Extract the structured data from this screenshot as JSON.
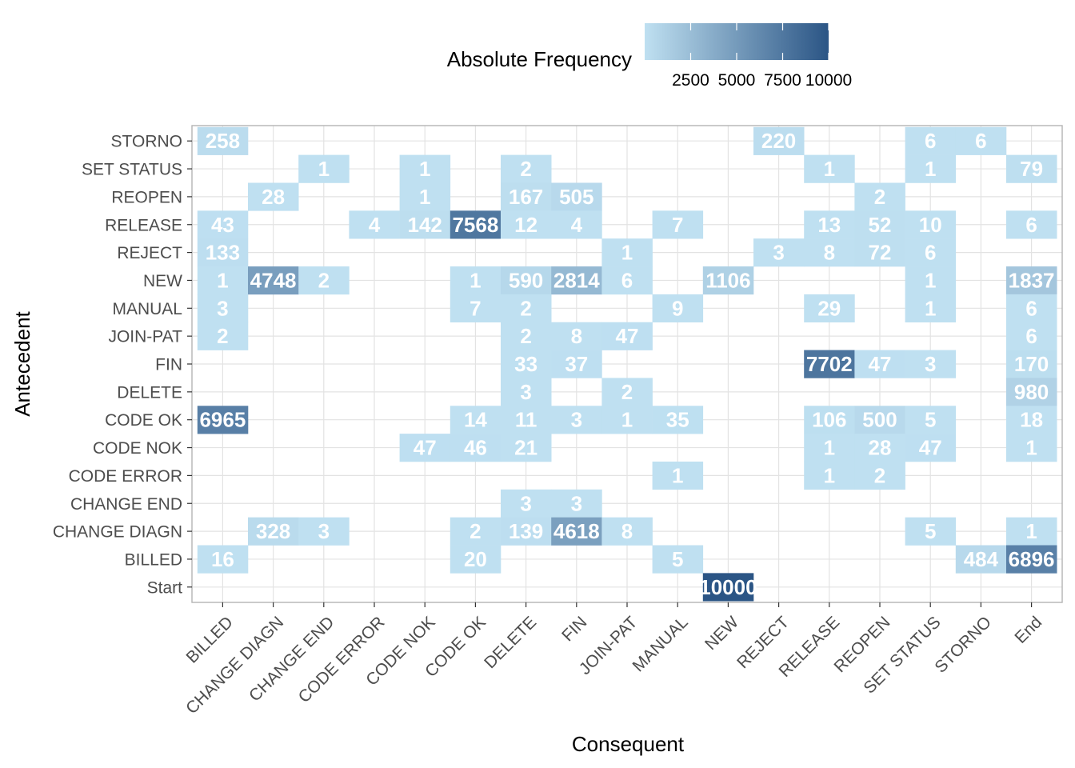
{
  "chart_data": {
    "type": "heatmap",
    "title": "",
    "xlabel": "Consequent",
    "ylabel": "Antecedent",
    "legend": {
      "title": "Absolute Frequency",
      "position": "top",
      "ticks": [
        2500,
        5000,
        7500,
        10000
      ],
      "range": [
        1,
        10000
      ],
      "color_low": "#bfe0f1",
      "color_high": "#2b5585"
    },
    "grid": true,
    "x_categories": [
      "BILLED",
      "CHANGE DIAGN",
      "CHANGE END",
      "CODE ERROR",
      "CODE NOK",
      "CODE OK",
      "DELETE",
      "FIN",
      "JOIN-PAT",
      "MANUAL",
      "NEW",
      "REJECT",
      "RELEASE",
      "REOPEN",
      "SET STATUS",
      "STORNO",
      "End"
    ],
    "y_categories": [
      "Start",
      "BILLED",
      "CHANGE DIAGN",
      "CHANGE END",
      "CODE ERROR",
      "CODE NOK",
      "CODE OK",
      "DELETE",
      "FIN",
      "JOIN-PAT",
      "MANUAL",
      "NEW",
      "REJECT",
      "RELEASE",
      "REOPEN",
      "SET STATUS",
      "STORNO"
    ],
    "cells": [
      {
        "y": "STORNO",
        "x": "BILLED",
        "value": 258
      },
      {
        "y": "STORNO",
        "x": "REJECT",
        "value": 220
      },
      {
        "y": "STORNO",
        "x": "SET STATUS",
        "value": 6
      },
      {
        "y": "STORNO",
        "x": "STORNO",
        "value": 6
      },
      {
        "y": "SET STATUS",
        "x": "CHANGE END",
        "value": 1
      },
      {
        "y": "SET STATUS",
        "x": "CODE NOK",
        "value": 1
      },
      {
        "y": "SET STATUS",
        "x": "DELETE",
        "value": 2
      },
      {
        "y": "SET STATUS",
        "x": "RELEASE",
        "value": 1
      },
      {
        "y": "SET STATUS",
        "x": "SET STATUS",
        "value": 1
      },
      {
        "y": "SET STATUS",
        "x": "End",
        "value": 79
      },
      {
        "y": "REOPEN",
        "x": "CHANGE DIAGN",
        "value": 28
      },
      {
        "y": "REOPEN",
        "x": "CODE NOK",
        "value": 1
      },
      {
        "y": "REOPEN",
        "x": "DELETE",
        "value": 167
      },
      {
        "y": "REOPEN",
        "x": "FIN",
        "value": 505
      },
      {
        "y": "REOPEN",
        "x": "REOPEN",
        "value": 2
      },
      {
        "y": "RELEASE",
        "x": "BILLED",
        "value": 43
      },
      {
        "y": "RELEASE",
        "x": "CODE ERROR",
        "value": 4
      },
      {
        "y": "RELEASE",
        "x": "CODE NOK",
        "value": 142
      },
      {
        "y": "RELEASE",
        "x": "CODE OK",
        "value": 7568
      },
      {
        "y": "RELEASE",
        "x": "DELETE",
        "value": 12
      },
      {
        "y": "RELEASE",
        "x": "FIN",
        "value": 4
      },
      {
        "y": "RELEASE",
        "x": "MANUAL",
        "value": 7
      },
      {
        "y": "RELEASE",
        "x": "RELEASE",
        "value": 13
      },
      {
        "y": "RELEASE",
        "x": "REOPEN",
        "value": 52
      },
      {
        "y": "RELEASE",
        "x": "SET STATUS",
        "value": 10
      },
      {
        "y": "RELEASE",
        "x": "End",
        "value": 6
      },
      {
        "y": "REJECT",
        "x": "BILLED",
        "value": 133
      },
      {
        "y": "REJECT",
        "x": "JOIN-PAT",
        "value": 1
      },
      {
        "y": "REJECT",
        "x": "REJECT",
        "value": 3
      },
      {
        "y": "REJECT",
        "x": "RELEASE",
        "value": 8
      },
      {
        "y": "REJECT",
        "x": "REOPEN",
        "value": 72
      },
      {
        "y": "REJECT",
        "x": "SET STATUS",
        "value": 6
      },
      {
        "y": "NEW",
        "x": "BILLED",
        "value": 1
      },
      {
        "y": "NEW",
        "x": "CHANGE DIAGN",
        "value": 4748
      },
      {
        "y": "NEW",
        "x": "CHANGE END",
        "value": 2
      },
      {
        "y": "NEW",
        "x": "CODE OK",
        "value": 1
      },
      {
        "y": "NEW",
        "x": "DELETE",
        "value": 590
      },
      {
        "y": "NEW",
        "x": "FIN",
        "value": 2814
      },
      {
        "y": "NEW",
        "x": "JOIN-PAT",
        "value": 6
      },
      {
        "y": "NEW",
        "x": "NEW",
        "value": 1106
      },
      {
        "y": "NEW",
        "x": "SET STATUS",
        "value": 1
      },
      {
        "y": "NEW",
        "x": "End",
        "value": 1837
      },
      {
        "y": "MANUAL",
        "x": "BILLED",
        "value": 3
      },
      {
        "y": "MANUAL",
        "x": "CODE OK",
        "value": 7
      },
      {
        "y": "MANUAL",
        "x": "DELETE",
        "value": 2
      },
      {
        "y": "MANUAL",
        "x": "MANUAL",
        "value": 9
      },
      {
        "y": "MANUAL",
        "x": "RELEASE",
        "value": 29
      },
      {
        "y": "MANUAL",
        "x": "SET STATUS",
        "value": 1
      },
      {
        "y": "MANUAL",
        "x": "End",
        "value": 6
      },
      {
        "y": "JOIN-PAT",
        "x": "BILLED",
        "value": 2
      },
      {
        "y": "JOIN-PAT",
        "x": "DELETE",
        "value": 2
      },
      {
        "y": "JOIN-PAT",
        "x": "FIN",
        "value": 8
      },
      {
        "y": "JOIN-PAT",
        "x": "JOIN-PAT",
        "value": 47
      },
      {
        "y": "JOIN-PAT",
        "x": "End",
        "value": 6
      },
      {
        "y": "FIN",
        "x": "DELETE",
        "value": 33
      },
      {
        "y": "FIN",
        "x": "FIN",
        "value": 37
      },
      {
        "y": "FIN",
        "x": "RELEASE",
        "value": 7702
      },
      {
        "y": "FIN",
        "x": "REOPEN",
        "value": 47
      },
      {
        "y": "FIN",
        "x": "SET STATUS",
        "value": 3
      },
      {
        "y": "FIN",
        "x": "End",
        "value": 170
      },
      {
        "y": "DELETE",
        "x": "DELETE",
        "value": 3
      },
      {
        "y": "DELETE",
        "x": "JOIN-PAT",
        "value": 2
      },
      {
        "y": "DELETE",
        "x": "End",
        "value": 980
      },
      {
        "y": "CODE OK",
        "x": "BILLED",
        "value": 6965
      },
      {
        "y": "CODE OK",
        "x": "CODE OK",
        "value": 14
      },
      {
        "y": "CODE OK",
        "x": "DELETE",
        "value": 11
      },
      {
        "y": "CODE OK",
        "x": "FIN",
        "value": 3
      },
      {
        "y": "CODE OK",
        "x": "JOIN-PAT",
        "value": 1
      },
      {
        "y": "CODE OK",
        "x": "MANUAL",
        "value": 35
      },
      {
        "y": "CODE OK",
        "x": "RELEASE",
        "value": 106
      },
      {
        "y": "CODE OK",
        "x": "REOPEN",
        "value": 500
      },
      {
        "y": "CODE OK",
        "x": "SET STATUS",
        "value": 5
      },
      {
        "y": "CODE OK",
        "x": "End",
        "value": 18
      },
      {
        "y": "CODE NOK",
        "x": "CODE NOK",
        "value": 47
      },
      {
        "y": "CODE NOK",
        "x": "CODE OK",
        "value": 46
      },
      {
        "y": "CODE NOK",
        "x": "DELETE",
        "value": 21
      },
      {
        "y": "CODE NOK",
        "x": "RELEASE",
        "value": 1
      },
      {
        "y": "CODE NOK",
        "x": "REOPEN",
        "value": 28
      },
      {
        "y": "CODE NOK",
        "x": "SET STATUS",
        "value": 47
      },
      {
        "y": "CODE NOK",
        "x": "End",
        "value": 1
      },
      {
        "y": "CODE ERROR",
        "x": "MANUAL",
        "value": 1
      },
      {
        "y": "CODE ERROR",
        "x": "RELEASE",
        "value": 1
      },
      {
        "y": "CODE ERROR",
        "x": "REOPEN",
        "value": 2
      },
      {
        "y": "CHANGE END",
        "x": "DELETE",
        "value": 3
      },
      {
        "y": "CHANGE END",
        "x": "FIN",
        "value": 3
      },
      {
        "y": "CHANGE DIAGN",
        "x": "CHANGE DIAGN",
        "value": 328
      },
      {
        "y": "CHANGE DIAGN",
        "x": "CHANGE END",
        "value": 3
      },
      {
        "y": "CHANGE DIAGN",
        "x": "CODE OK",
        "value": 2
      },
      {
        "y": "CHANGE DIAGN",
        "x": "DELETE",
        "value": 139
      },
      {
        "y": "CHANGE DIAGN",
        "x": "FIN",
        "value": 4618
      },
      {
        "y": "CHANGE DIAGN",
        "x": "JOIN-PAT",
        "value": 8
      },
      {
        "y": "CHANGE DIAGN",
        "x": "SET STATUS",
        "value": 5
      },
      {
        "y": "CHANGE DIAGN",
        "x": "End",
        "value": 1
      },
      {
        "y": "BILLED",
        "x": "BILLED",
        "value": 16
      },
      {
        "y": "BILLED",
        "x": "CODE OK",
        "value": 20
      },
      {
        "y": "BILLED",
        "x": "MANUAL",
        "value": 5
      },
      {
        "y": "BILLED",
        "x": "STORNO",
        "value": 484
      },
      {
        "y": "BILLED",
        "x": "End",
        "value": 6896
      },
      {
        "y": "Start",
        "x": "NEW",
        "value": 10000
      }
    ]
  }
}
